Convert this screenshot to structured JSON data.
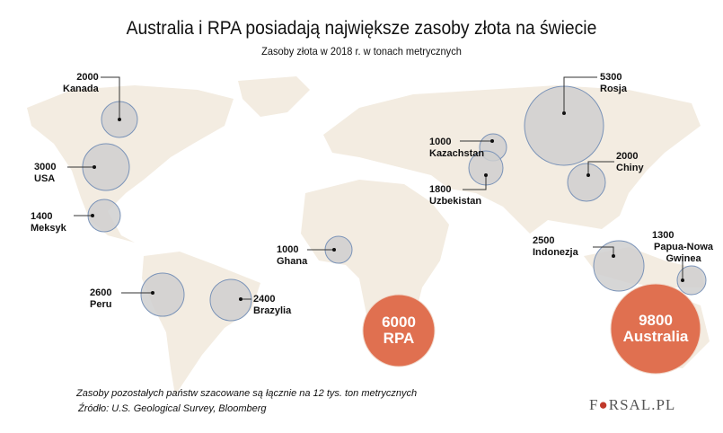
{
  "header": {
    "title": "Australia i RPA posiadają największe zasoby złota na świecie",
    "subtitle": "Zasoby złota w 2018 r. w tonach metrycznych"
  },
  "colors": {
    "land": "#f3ece1",
    "bubble": "#cfcfcf",
    "bubble_stroke": "#7a93b8",
    "big_bubble": "#e07050",
    "leader": "#333333"
  },
  "countries": [
    {
      "name": "Kanada",
      "value": "2000"
    },
    {
      "name": "USA",
      "value": "3000"
    },
    {
      "name": "Meksyk",
      "value": "1400"
    },
    {
      "name": "Peru",
      "value": "2600"
    },
    {
      "name": "Brazylia",
      "value": "2400"
    },
    {
      "name": "Ghana",
      "value": "1000"
    },
    {
      "name": "RPA",
      "value": "6000"
    },
    {
      "name": "Kazachstan",
      "value": "1000"
    },
    {
      "name": "Uzbekistan",
      "value": "1800"
    },
    {
      "name": "Rosja",
      "value": "5300"
    },
    {
      "name": "Chiny",
      "value": "2000"
    },
    {
      "name": "Indonezja",
      "value": "2500"
    },
    {
      "name": "Papua-Nowa Gwinea",
      "value": "1300",
      "name_lines": [
        "Papua-",
        "Nowa Gwinea"
      ]
    },
    {
      "name": "Australia",
      "value": "9800"
    }
  ],
  "footer": {
    "note": "Zasoby pozostałych państw szacowane są łącznie na 12 tys. ton metrycznych",
    "source": "Źródło: U.S. Geological Survey, Bloomberg",
    "logo": "FORSAL.PL"
  }
}
